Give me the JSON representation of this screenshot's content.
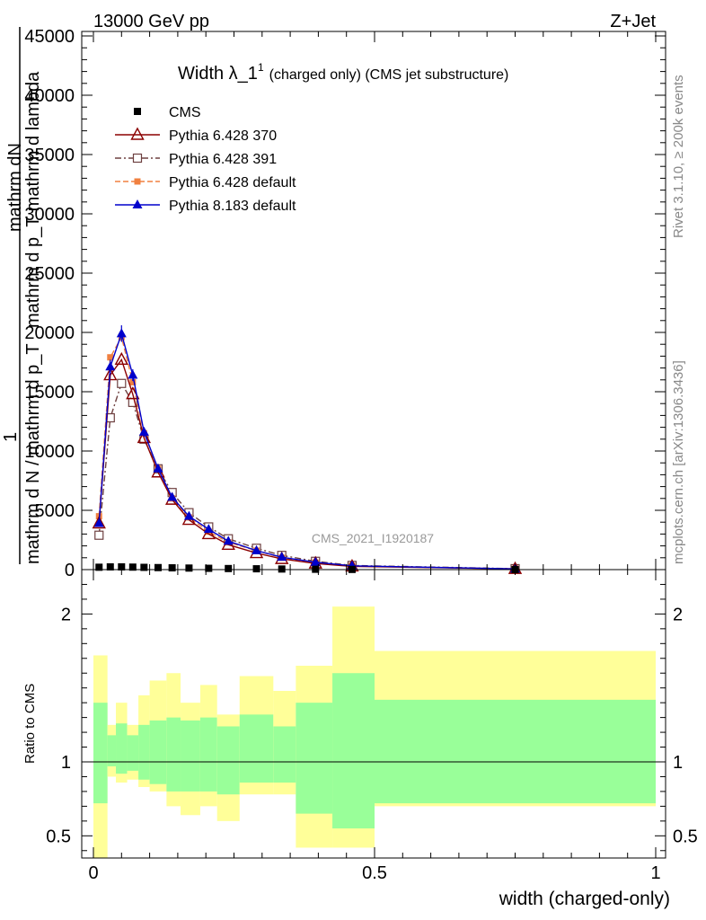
{
  "header": {
    "left": "13000 GeV pp",
    "right": "Z+Jet"
  },
  "side_labels": {
    "rivet": "Rivet 3.1.10, ≥ 200k events",
    "mcplots": "mcplots.cern.ch [arXiv:1306.3436]"
  },
  "colors": {
    "cms": "#000000",
    "py6_370": "#8b0000",
    "py6_391": "#6e4040",
    "py6_default": "#f08040",
    "py8_default": "#0000cc",
    "band_inner": "#99ff99",
    "band_outer": "#ffff99"
  },
  "chart_data": [
    {
      "type": "line",
      "title": "Width λ_1",
      "title_sup": "1",
      "title_suffix": "(charged only) (CMS jet substructure)",
      "watermark": "CMS_2021_I1920187",
      "ylabel_top": "mathrm dN",
      "ylabel_top2": "mathrm d p_T mathrm d lambda",
      "ylabel_bottom": "mathrm d N / mathrm d p_T",
      "ylabel_one": "1",
      "xlim": [
        0,
        1
      ],
      "ylim": [
        0,
        45000
      ],
      "yticks": [
        0,
        5000,
        10000,
        15000,
        20000,
        25000,
        30000,
        35000,
        40000,
        45000
      ],
      "ytick_labels": [
        "0",
        "5000",
        "10000",
        "15000",
        "20000",
        "25000",
        "30000",
        "35000",
        "40000",
        "45000"
      ],
      "legend": [
        "CMS",
        "Pythia 6.428 370",
        "Pythia 6.428 391",
        "Pythia 6.428 default",
        "Pythia 8.183 default"
      ],
      "x": [
        0.01,
        0.03,
        0.05,
        0.07,
        0.09,
        0.115,
        0.14,
        0.17,
        0.205,
        0.24,
        0.29,
        0.335,
        0.395,
        0.46,
        0.75
      ],
      "series": [
        {
          "name": "CMS",
          "key": "cms",
          "marker": "square-filled",
          "dash": "none",
          "values": [
            200,
            230,
            230,
            210,
            190,
            170,
            150,
            130,
            110,
            90,
            70,
            50,
            30,
            15,
            3
          ]
        },
        {
          "name": "Pythia 6.428 370",
          "key": "py6_370",
          "marker": "triangle-open",
          "dash": "none",
          "values": [
            3900,
            16400,
            17700,
            14800,
            11100,
            8200,
            5900,
            4200,
            3000,
            2100,
            1400,
            900,
            520,
            270,
            60
          ]
        },
        {
          "name": "Pythia 6.428 391",
          "key": "py6_391",
          "marker": "square-open",
          "dash": "7,3,2,3",
          "values": [
            2900,
            12800,
            15700,
            14100,
            11000,
            8500,
            6500,
            4800,
            3600,
            2600,
            1800,
            1200,
            700,
            350,
            80
          ]
        },
        {
          "name": "Pythia 6.428 default",
          "key": "py6_default",
          "marker": "square-filled-small",
          "dash": "6,3",
          "values": [
            4500,
            17900,
            19600,
            15800,
            11500,
            8500,
            6000,
            4400,
            3200,
            2300,
            1600,
            1000,
            580,
            300,
            60
          ]
        },
        {
          "name": "Pythia 8.183 default",
          "key": "py8_default",
          "marker": "triangle-filled",
          "dash": "none",
          "values": [
            3900,
            17100,
            19900,
            16400,
            11600,
            8500,
            6100,
            4500,
            3400,
            2400,
            1600,
            1050,
            620,
            320,
            60
          ]
        }
      ],
      "errors_py8": [
        300,
        600,
        700,
        500,
        400,
        300,
        200,
        150,
        120,
        100,
        80,
        60,
        40,
        30,
        10
      ]
    },
    {
      "type": "area",
      "ylabel": "Ratio to CMS",
      "xlabel": "width (charged-only)",
      "xlim": [
        0,
        1
      ],
      "ylim": [
        0.35,
        2.3
      ],
      "xticks": [
        0,
        0.5,
        1
      ],
      "xtick_labels": [
        "0",
        "0.5",
        "1"
      ],
      "yticks": [
        0.5,
        1,
        2
      ],
      "ytick_labels": [
        "0.5",
        "1",
        "2"
      ],
      "bins": [
        0,
        0.025,
        0.04,
        0.06,
        0.08,
        0.1,
        0.13,
        0.155,
        0.19,
        0.22,
        0.26,
        0.32,
        0.36,
        0.425,
        0.5,
        1.0
      ],
      "band_outer_lo": [
        0.35,
        0.9,
        0.86,
        0.88,
        0.83,
        0.8,
        0.7,
        0.64,
        0.7,
        0.6,
        0.78,
        0.78,
        0.42,
        0.42,
        0.7
      ],
      "band_outer_hi": [
        1.72,
        1.25,
        1.4,
        1.25,
        1.45,
        1.55,
        1.6,
        1.4,
        1.52,
        1.32,
        1.58,
        1.48,
        1.65,
        2.05,
        1.75
      ],
      "band_inner_lo": [
        0.72,
        0.97,
        0.92,
        0.94,
        0.88,
        0.85,
        0.8,
        0.8,
        0.8,
        0.78,
        0.86,
        0.86,
        0.65,
        0.55,
        0.72
      ],
      "band_inner_hi": [
        1.4,
        1.18,
        1.26,
        1.18,
        1.25,
        1.28,
        1.3,
        1.28,
        1.3,
        1.24,
        1.32,
        1.24,
        1.4,
        1.6,
        1.42
      ]
    }
  ]
}
